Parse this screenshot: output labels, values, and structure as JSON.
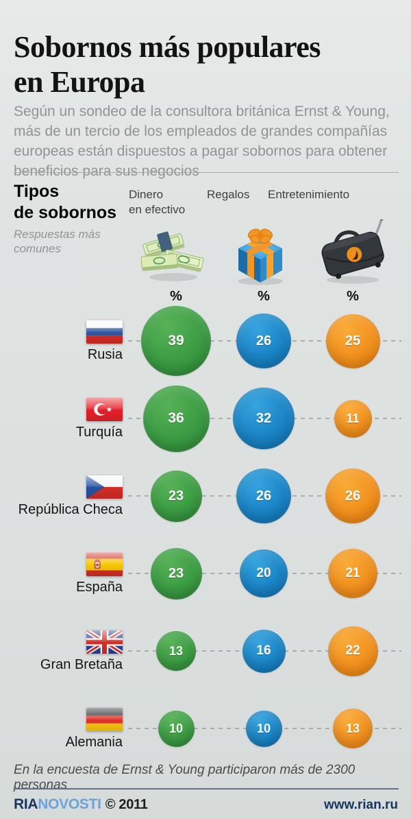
{
  "page": {
    "title_lines": [
      "Sobornos más populares",
      "en Europa"
    ],
    "subtitle": "Según un sondeo de la consultora británica Ernst & Young, más de un tercio de los empleados de grandes compañías europeas están dispuestos a pagar sobornos para obtener beneficios para sus negocios"
  },
  "section": {
    "heading_lines": [
      "Tipos",
      "de sobornos"
    ],
    "subheading": "Respuestas más comunes"
  },
  "columns": [
    {
      "label": "Dinero en efectivo",
      "label_lines": [
        "Dinero",
        "en efectivo"
      ],
      "unit": "%",
      "icon": "money-stack-icon",
      "bubble_gradient": [
        "#58b257",
        "#3c9d44",
        "#298232"
      ]
    },
    {
      "label": "Regalos",
      "label_lines": [
        "Regalos"
      ],
      "unit": "%",
      "icon": "gift-icon",
      "bubble_gradient": [
        "#37a4df",
        "#1b85c6",
        "#0d6cab"
      ]
    },
    {
      "label": "Entretenimiento",
      "label_lines": [
        "Entretenimiento"
      ],
      "unit": "%",
      "icon": "suitcase-icon",
      "bubble_gradient": [
        "#f9ac38",
        "#f29120",
        "#e87e0b"
      ]
    }
  ],
  "rows": [
    {
      "country": "Rusia",
      "flag": "russia",
      "values": [
        39,
        26,
        25
      ]
    },
    {
      "country": "Turquía",
      "flag": "turkey",
      "values": [
        36,
        32,
        11
      ]
    },
    {
      "country": "República Checa",
      "flag": "czech-republic",
      "values": [
        23,
        26,
        26
      ]
    },
    {
      "country": "España",
      "flag": "spain",
      "values": [
        23,
        20,
        21
      ]
    },
    {
      "country": "Gran Bretaña",
      "flag": "great-britain",
      "values": [
        13,
        16,
        22
      ]
    },
    {
      "country": "Alemania",
      "flag": "germany",
      "values": [
        10,
        10,
        13
      ]
    }
  ],
  "footnote": "En la encuesta de Ernst & Young participaron más de 2300 personas",
  "footer": {
    "logo_ria": "RIA",
    "logo_novosti": "NOVOSTI",
    "copyright": "© 2011",
    "website": "www.rian.ru"
  },
  "colors": {
    "cash": "#3c9d44",
    "gifts": "#1b85c6",
    "entertainment": "#f29120",
    "background": "#dfe3e2",
    "brand_dark_blue": "#17365e",
    "brand_light_blue": "#6ba3d8"
  },
  "chart_data": {
    "type": "table",
    "title": "Sobornos más populares en Europa — Tipos de sobornos",
    "subtitle": "Respuestas más comunes",
    "unit": "%",
    "categories": [
      "Rusia",
      "Turquía",
      "República Checa",
      "España",
      "Gran Bretaña",
      "Alemania"
    ],
    "series": [
      {
        "name": "Dinero en efectivo",
        "values": [
          39,
          36,
          23,
          23,
          13,
          10
        ]
      },
      {
        "name": "Regalos",
        "values": [
          26,
          32,
          26,
          20,
          16,
          10
        ]
      },
      {
        "name": "Entretenimiento",
        "values": [
          25,
          11,
          26,
          21,
          22,
          13
        ]
      }
    ],
    "note": "Bubble size proportional to value",
    "source_note": "En la encuesta de Ernst & Young participaron más de 2300 personas"
  }
}
